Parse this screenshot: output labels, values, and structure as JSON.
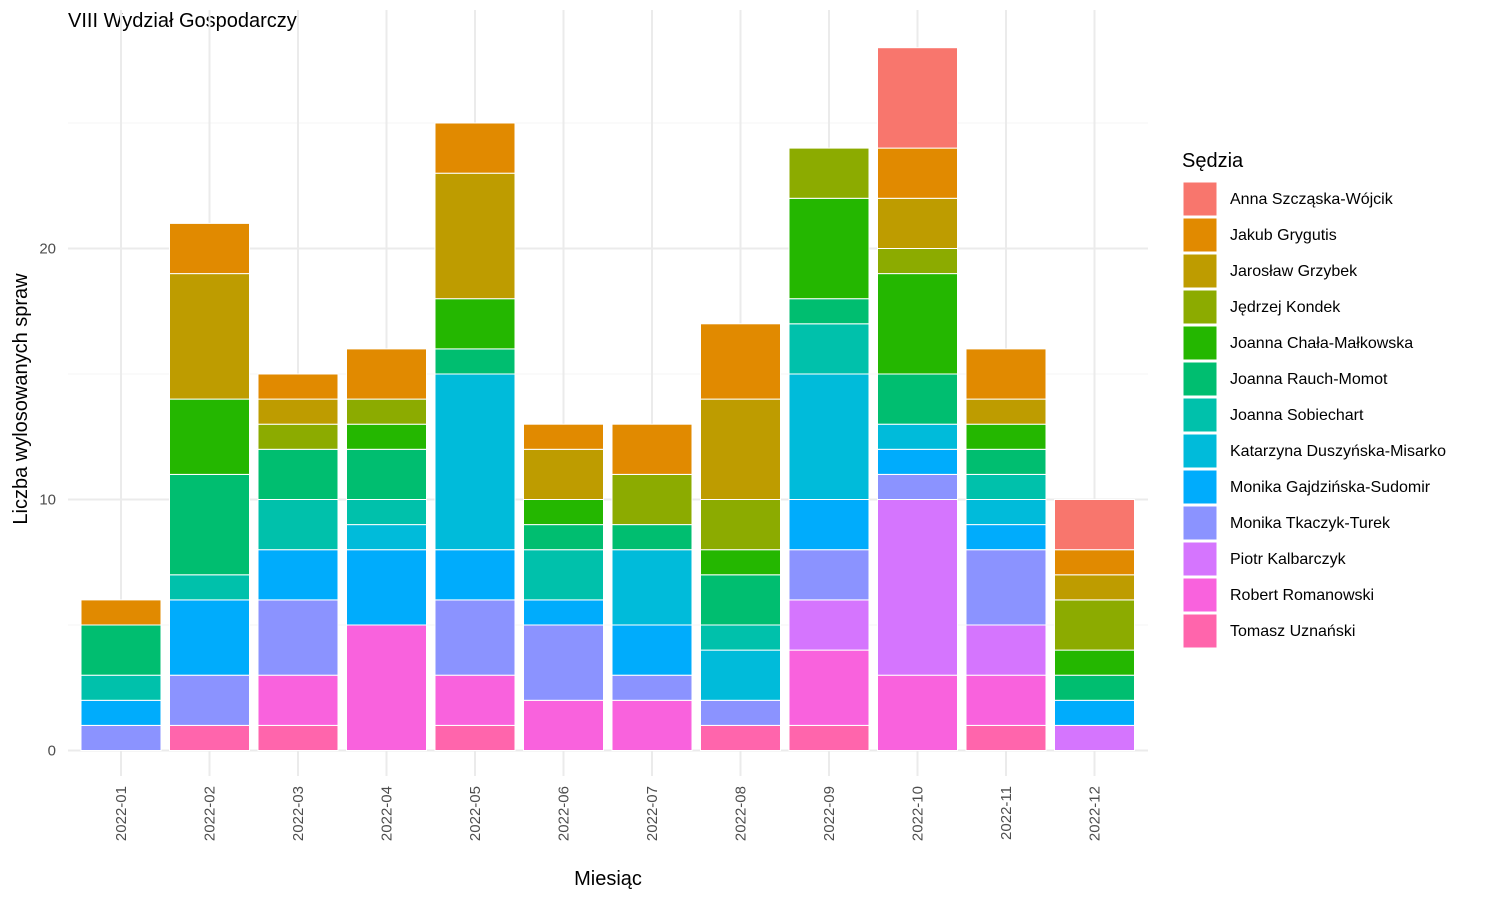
{
  "chart_data": {
    "type": "bar",
    "stacked": true,
    "title": "VIII Wydział Gospodarczy",
    "xlabel": "Miesiąc",
    "ylabel": "Liczba wylosowanych spraw",
    "ylim": [
      0,
      28
    ],
    "yticks": [
      0,
      10,
      20
    ],
    "grid": true,
    "legend_title": "Sędzia",
    "legend_position": "right",
    "categories": [
      "2022-01",
      "2022-02",
      "2022-03",
      "2022-04",
      "2022-05",
      "2022-06",
      "2022-07",
      "2022-08",
      "2022-09",
      "2022-10",
      "2022-11",
      "2022-12"
    ],
    "series": [
      {
        "name": "Anna Szcząska-Wójcik",
        "color": "#F8766D",
        "values": [
          0,
          0,
          0,
          0,
          0,
          0,
          0,
          0,
          0,
          4,
          0,
          2
        ]
      },
      {
        "name": "Jakub Grygutis",
        "color": "#E18A00",
        "values": [
          1,
          2,
          1,
          2,
          2,
          1,
          2,
          3,
          0,
          2,
          2,
          1
        ]
      },
      {
        "name": "Jarosław Grzybek",
        "color": "#BE9C00",
        "values": [
          0,
          5,
          1,
          0,
          5,
          2,
          0,
          4,
          0,
          2,
          1,
          1
        ]
      },
      {
        "name": "Jędrzej Kondek",
        "color": "#8CAB00",
        "values": [
          0,
          0,
          1,
          1,
          0,
          0,
          2,
          2,
          2,
          1,
          0,
          2
        ]
      },
      {
        "name": "Joanna Chała-Małkowska",
        "color": "#24B700",
        "values": [
          0,
          3,
          0,
          1,
          2,
          1,
          0,
          1,
          4,
          4,
          1,
          1
        ]
      },
      {
        "name": "Joanna Rauch-Momot",
        "color": "#00BE70",
        "values": [
          2,
          4,
          2,
          2,
          1,
          1,
          1,
          2,
          1,
          2,
          1,
          1
        ]
      },
      {
        "name": "Joanna Sobiechart",
        "color": "#00C1AB",
        "values": [
          1,
          1,
          2,
          1,
          0,
          2,
          0,
          1,
          2,
          0,
          1,
          0
        ]
      },
      {
        "name": "Katarzyna Duszyńska-Misarko",
        "color": "#00BBDA",
        "values": [
          0,
          0,
          0,
          1,
          7,
          0,
          3,
          2,
          5,
          1,
          1,
          0
        ]
      },
      {
        "name": "Monika Gajdzińska-Sudomir",
        "color": "#00ACFC",
        "values": [
          1,
          3,
          2,
          3,
          2,
          1,
          2,
          0,
          2,
          1,
          1,
          1
        ]
      },
      {
        "name": "Monika Tkaczyk-Turek",
        "color": "#8B93FF",
        "values": [
          1,
          2,
          3,
          0,
          3,
          3,
          1,
          1,
          2,
          1,
          3,
          0
        ]
      },
      {
        "name": "Piotr Kalbarczyk",
        "color": "#D575FE",
        "values": [
          0,
          0,
          0,
          0,
          0,
          0,
          0,
          0,
          2,
          7,
          2,
          1
        ]
      },
      {
        "name": "Robert Romanowski",
        "color": "#F962DD",
        "values": [
          0,
          0,
          2,
          5,
          2,
          2,
          2,
          0,
          3,
          3,
          2,
          0
        ]
      },
      {
        "name": "Tomasz Uznański",
        "color": "#FF65AC",
        "values": [
          0,
          1,
          1,
          0,
          1,
          0,
          0,
          1,
          1,
          0,
          1,
          0
        ]
      }
    ]
  }
}
